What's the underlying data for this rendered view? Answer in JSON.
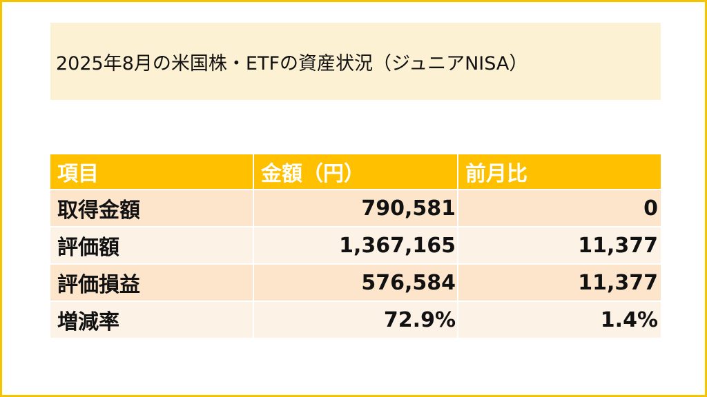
{
  "title": "2025年8月の米国株・ETFの資産状況（ジュニアNISA）",
  "table": {
    "headers": [
      "項目",
      "金額（円）",
      "前月比"
    ],
    "rows": [
      [
        "取得金額",
        "790,581",
        "0"
      ],
      [
        "評価額",
        "1,367,165",
        "11,377"
      ],
      [
        "評価損益",
        "576,584",
        "11,377"
      ],
      [
        "増減率",
        "72.9%",
        "1.4%"
      ]
    ]
  },
  "colors": {
    "border": "#f5c400",
    "title_bg": "#fdf1d3",
    "header_bg": "#ffc000",
    "row_odd_bg": "#fde5cc",
    "row_even_bg": "#fdf2e6"
  }
}
